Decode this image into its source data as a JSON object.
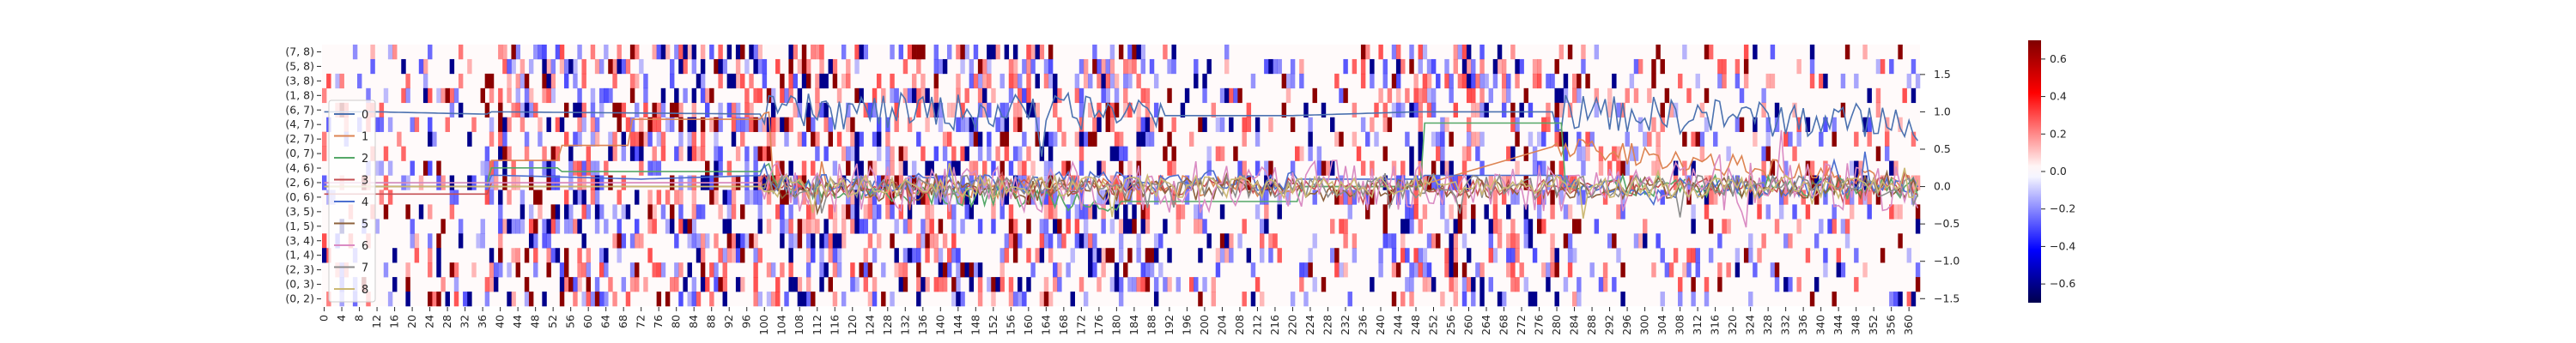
{
  "chart_data": {
    "type": "heatmap",
    "description_of_layers": "heatmap of pair interactions with 9 overlaid line series on a secondary right y-axis",
    "heatmap": {
      "y_tick_labels": [
        "(7, 8)",
        "(5, 8)",
        "(3, 8)",
        "(1, 8)",
        "(6, 7)",
        "(4, 7)",
        "(2, 7)",
        "(0, 7)",
        "(4, 6)",
        "(2, 6)",
        "(0, 6)",
        "(3, 5)",
        "(1, 5)",
        "(3, 4)",
        "(1, 4)",
        "(2, 3)",
        "(0, 3)",
        "(0, 2)"
      ],
      "x_start": 0,
      "x_end": 362,
      "x_tick_step": 4,
      "colorbar": {
        "vmin": -0.7,
        "vmax": 0.7,
        "ticks": [
          "0.6",
          "0.4",
          "0.2",
          "0.0",
          "−0.2",
          "−0.4",
          "−0.6"
        ],
        "colormap": "seismic"
      },
      "pos_color": "#ff0000",
      "neg_color": "#0000ff",
      "dark_pos": "#8b0000",
      "dark_neg": "#00008b"
    },
    "secondary_axis": {
      "ylim": [
        -1.6,
        1.9
      ],
      "ticks": [
        "1.5",
        "1.0",
        "0.5",
        "0.0",
        "−0.5",
        "−1.0",
        "−1.5"
      ],
      "tick_values": [
        1.5,
        1.0,
        0.5,
        0.0,
        -0.5,
        -1.0,
        -1.5
      ]
    },
    "series": [
      {
        "name": "0",
        "color": "#4c72b0",
        "segments": [
          [
            0,
            1.0
          ],
          [
            12,
            1.0
          ],
          [
            36,
            0.97
          ],
          [
            40,
            1.0
          ],
          [
            100,
            0.97
          ],
          [
            104,
            1.0
          ],
          [
            180,
            1.0
          ],
          [
            190,
            0.95
          ],
          [
            220,
            0.95
          ],
          [
            248,
            1.0
          ],
          [
            280,
            1.0
          ],
          [
            362,
            0.85
          ]
        ],
        "noise": 0.25,
        "noisy_ranges": [
          [
            100,
            190
          ],
          [
            280,
            362
          ]
        ]
      },
      {
        "name": "1",
        "color": "#dd8452",
        "segments": [
          [
            0,
            0.0
          ],
          [
            36,
            0.0
          ],
          [
            40,
            0.35
          ],
          [
            52,
            0.35
          ],
          [
            56,
            0.55
          ],
          [
            68,
            0.55
          ],
          [
            72,
            0.9
          ],
          [
            100,
            0.9
          ],
          [
            104,
            0.0
          ],
          [
            220,
            0.0
          ],
          [
            248,
            0.0
          ],
          [
            280,
            0.55
          ],
          [
            362,
            0.0
          ]
        ],
        "noise": 0.15,
        "noisy_ranges": [
          [
            100,
            220
          ],
          [
            280,
            362
          ]
        ]
      },
      {
        "name": "2",
        "color": "#55a868",
        "segments": [
          [
            0,
            0.05
          ],
          [
            36,
            0.05
          ],
          [
            40,
            0.25
          ],
          [
            52,
            0.25
          ],
          [
            56,
            0.2
          ],
          [
            100,
            0.2
          ],
          [
            104,
            0.0
          ],
          [
            180,
            -0.2
          ],
          [
            220,
            -0.2
          ],
          [
            224,
            0.0
          ],
          [
            248,
            0.0
          ],
          [
            252,
            0.85
          ],
          [
            280,
            0.85
          ],
          [
            284,
            0.0
          ],
          [
            362,
            0.0
          ]
        ],
        "noise": 0.15,
        "noisy_ranges": [
          [
            100,
            180
          ],
          [
            284,
            362
          ]
        ]
      },
      {
        "name": "3",
        "color": "#c44e52",
        "segments": [
          [
            0,
            -0.1
          ],
          [
            36,
            -0.1
          ],
          [
            40,
            0.05
          ],
          [
            100,
            0.05
          ],
          [
            104,
            0.0
          ],
          [
            362,
            0.0
          ]
        ],
        "noise": 0.12,
        "noisy_ranges": [
          [
            100,
            362
          ]
        ]
      },
      {
        "name": "4",
        "color": "#4c6fd0",
        "segments": [
          [
            0,
            0.0
          ],
          [
            36,
            0.0
          ],
          [
            40,
            0.15
          ],
          [
            72,
            0.1
          ],
          [
            100,
            0.15
          ],
          [
            104,
            0.0
          ],
          [
            220,
            0.1
          ],
          [
            248,
            0.1
          ],
          [
            252,
            0.15
          ],
          [
            280,
            0.15
          ],
          [
            284,
            0.0
          ],
          [
            362,
            0.0
          ]
        ],
        "noise": 0.15,
        "noisy_ranges": [
          [
            100,
            220
          ],
          [
            284,
            362
          ]
        ]
      },
      {
        "name": "5",
        "color": "#8c613c",
        "segments": [
          [
            0,
            0.0
          ],
          [
            100,
            0.0
          ],
          [
            104,
            -0.05
          ],
          [
            362,
            0.0
          ]
        ],
        "noise": 0.15,
        "noisy_ranges": [
          [
            100,
            362
          ]
        ]
      },
      {
        "name": "6",
        "color": "#da8bc3",
        "segments": [
          [
            0,
            0.05
          ],
          [
            100,
            0.05
          ],
          [
            104,
            0.0
          ],
          [
            362,
            0.0
          ]
        ],
        "noise": 0.35,
        "noisy_ranges": [
          [
            100,
            362
          ]
        ]
      },
      {
        "name": "7",
        "color": "#8c8c8c",
        "segments": [
          [
            0,
            0.0
          ],
          [
            100,
            0.0
          ],
          [
            104,
            0.0
          ],
          [
            362,
            0.0
          ]
        ],
        "noise": 0.15,
        "noisy_ranges": [
          [
            100,
            362
          ]
        ]
      },
      {
        "name": "8",
        "color": "#ccb974",
        "segments": [
          [
            0,
            0.0
          ],
          [
            100,
            0.0
          ],
          [
            104,
            0.0
          ],
          [
            362,
            0.0
          ]
        ],
        "noise": 0.15,
        "noisy_ranges": [
          [
            100,
            362
          ]
        ]
      }
    ],
    "legend": {
      "placement": "left",
      "entries": [
        "0",
        "1",
        "2",
        "3",
        "4",
        "5",
        "6",
        "7",
        "8"
      ]
    },
    "grid": false
  }
}
